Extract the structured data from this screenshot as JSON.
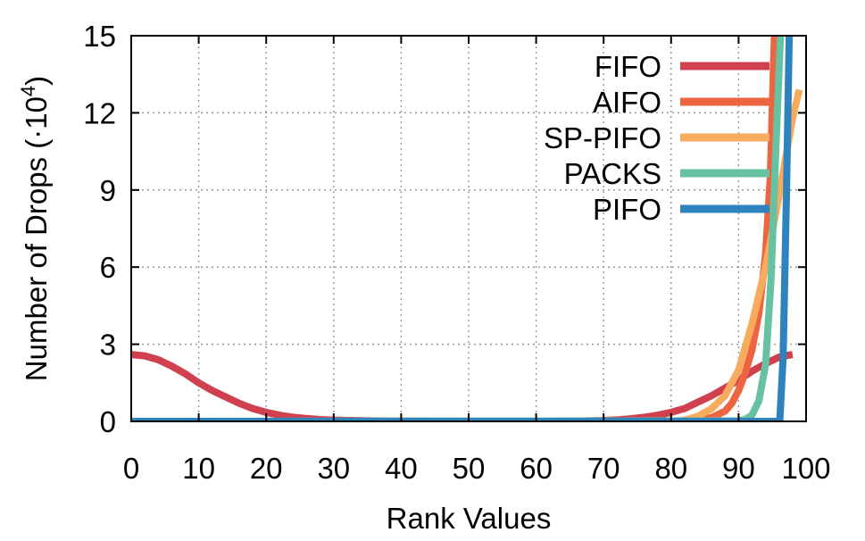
{
  "chart_data": {
    "type": "line",
    "xlabel": "Rank Values",
    "ylabel_text": "Number of Drops (",
    "ylabel_dot": "·",
    "ylabel_base": "10",
    "ylabel_exp": "4",
    "ylabel_close": ")",
    "xlim": [
      0,
      100
    ],
    "ylim": [
      0,
      15
    ],
    "x_ticks": [
      "0",
      "10",
      "20",
      "30",
      "40",
      "50",
      "60",
      "70",
      "80",
      "90",
      "100"
    ],
    "y_ticks": [
      "0",
      "3",
      "6",
      "9",
      "12",
      "15"
    ],
    "grid": true,
    "legend_position": "top-right",
    "series": [
      {
        "name": "FIFO",
        "color": "#d1404f",
        "x": [
          0,
          2,
          4,
          6,
          8,
          10,
          12,
          14,
          16,
          18,
          20,
          22,
          24,
          26,
          28,
          30,
          35,
          40,
          50,
          60,
          65,
          70,
          72,
          74,
          76,
          78,
          80,
          82,
          84,
          86,
          88,
          90,
          92,
          94,
          96,
          98
        ],
        "y": [
          2.6,
          2.55,
          2.4,
          2.15,
          1.85,
          1.5,
          1.2,
          0.95,
          0.7,
          0.5,
          0.35,
          0.24,
          0.16,
          0.11,
          0.07,
          0.05,
          0.02,
          0.01,
          0.0,
          0.0,
          0.01,
          0.03,
          0.06,
          0.1,
          0.16,
          0.24,
          0.35,
          0.5,
          0.75,
          1.0,
          1.3,
          1.6,
          1.95,
          2.25,
          2.5,
          2.6
        ]
      },
      {
        "name": "AIFO",
        "color": "#ec6540",
        "x": [
          0,
          80,
          82,
          84,
          86,
          88,
          89,
          90,
          91,
          92,
          93,
          94,
          94.7,
          95.3
        ],
        "y": [
          0.0,
          0.0,
          0.02,
          0.06,
          0.15,
          0.4,
          0.7,
          1.2,
          1.9,
          2.8,
          4.2,
          6.5,
          9.5,
          15
        ]
      },
      {
        "name": "SP-PIFO",
        "color": "#f6ab5e",
        "x": [
          0,
          80,
          82,
          84,
          86,
          88,
          90,
          92,
          94,
          96,
          98,
          99
        ],
        "y": [
          0.0,
          0.0,
          0.05,
          0.2,
          0.5,
          1.0,
          2.0,
          3.8,
          6.0,
          8.8,
          11.8,
          12.9
        ]
      },
      {
        "name": "PACKS",
        "color": "#66c2a0",
        "x": [
          0,
          90,
          91,
          92,
          93,
          94,
          94.8,
          95.5,
          96.2
        ],
        "y": [
          0.0,
          0.02,
          0.08,
          0.25,
          0.8,
          2.2,
          5.5,
          10.5,
          15
        ]
      },
      {
        "name": "PIFO",
        "color": "#2e82bd",
        "x": [
          0,
          95.6,
          96.1,
          96.6,
          97.1,
          97.5
        ],
        "y": [
          0.0,
          0.0,
          0.0,
          2.5,
          9.0,
          15
        ]
      }
    ]
  }
}
